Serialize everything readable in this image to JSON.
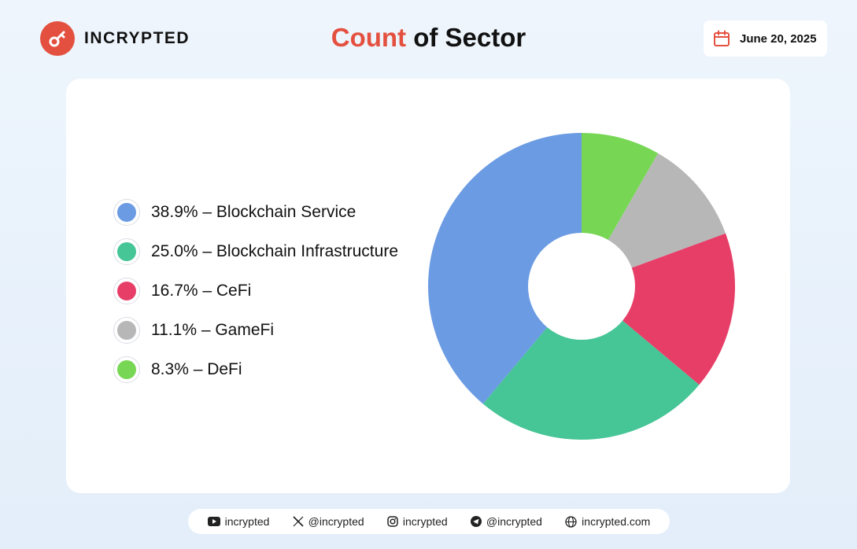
{
  "brand": {
    "name": "INCRYPTED",
    "accent": "#e4503f"
  },
  "title": {
    "accent": "Count",
    "rest": " of Sector"
  },
  "date": "June 20, 2025",
  "legend": [
    {
      "label": "38.9% – Blockchain Service",
      "color": "#6b9be3"
    },
    {
      "label": "25.0% – Blockchain Infrastructure",
      "color": "#46c596"
    },
    {
      "label": "16.7% – CeFi",
      "color": "#e73e68"
    },
    {
      "label": "11.1% – GameFi",
      "color": "#b7b7b7"
    },
    {
      "label": "8.3% – DeFi",
      "color": "#77d755"
    }
  ],
  "chart_data": {
    "type": "pie",
    "title": "Count of Sector",
    "donut": true,
    "slices": [
      {
        "label": "DeFi",
        "value": 8.3,
        "color": "#77d755"
      },
      {
        "label": "GameFi",
        "value": 11.1,
        "color": "#b7b7b7"
      },
      {
        "label": "CeFi",
        "value": 16.7,
        "color": "#e73e68"
      },
      {
        "label": "Blockchain Infrastructure",
        "value": 25.0,
        "color": "#46c596"
      },
      {
        "label": "Blockchain Service",
        "value": 38.9,
        "color": "#6b9be3"
      }
    ],
    "legend_position": "left"
  },
  "footer": [
    {
      "icon": "youtube-icon",
      "label": "incrypted"
    },
    {
      "icon": "x-icon",
      "label": "@incrypted"
    },
    {
      "icon": "instagram-icon",
      "label": "incrypted"
    },
    {
      "icon": "telegram-icon",
      "label": "@incrypted"
    },
    {
      "icon": "globe-icon",
      "label": "incrypted.com"
    }
  ]
}
